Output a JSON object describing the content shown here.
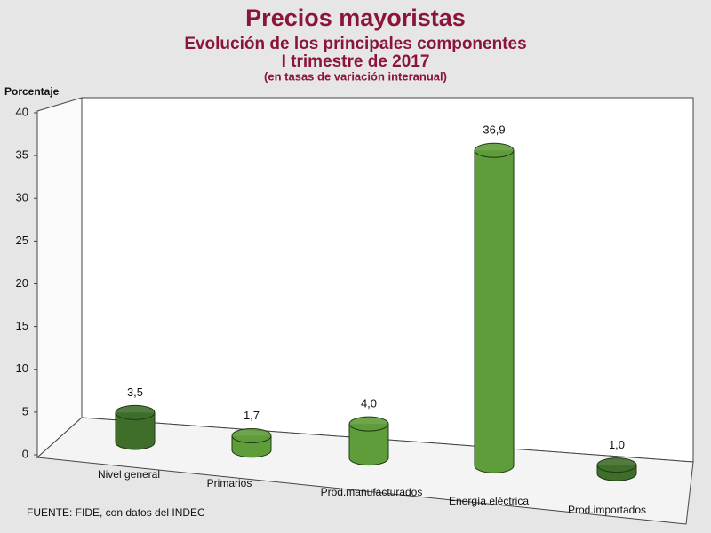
{
  "chart_data": {
    "type": "bar3d",
    "title": "Precios mayoristas",
    "subtitle": [
      "Evolución de los principales componentes",
      "I trimestre de 2017",
      "(en tasas de variación interanual)"
    ],
    "y_label": "Porcentaje",
    "source": "FUENTE: FIDE, con datos del  INDEC",
    "categories": [
      "Nivel general",
      "Primarios",
      "Prod.manufacturados",
      "Energía eléctrica",
      "Prod.importados"
    ],
    "values": [
      3.5,
      1.7,
      4.0,
      36.9,
      1.0
    ],
    "value_labels": [
      "3,5",
      "1,7",
      "4,0",
      "36,9",
      "1,0"
    ],
    "colors": [
      "#3f6e2b",
      "#5f9c3a",
      "#5f9c3a",
      "#5f9c3a",
      "#3f6e2b"
    ],
    "ylim": [
      0,
      40
    ],
    "yticks": [
      0,
      5,
      10,
      15,
      20,
      25,
      30,
      35,
      40
    ],
    "grid": false
  }
}
